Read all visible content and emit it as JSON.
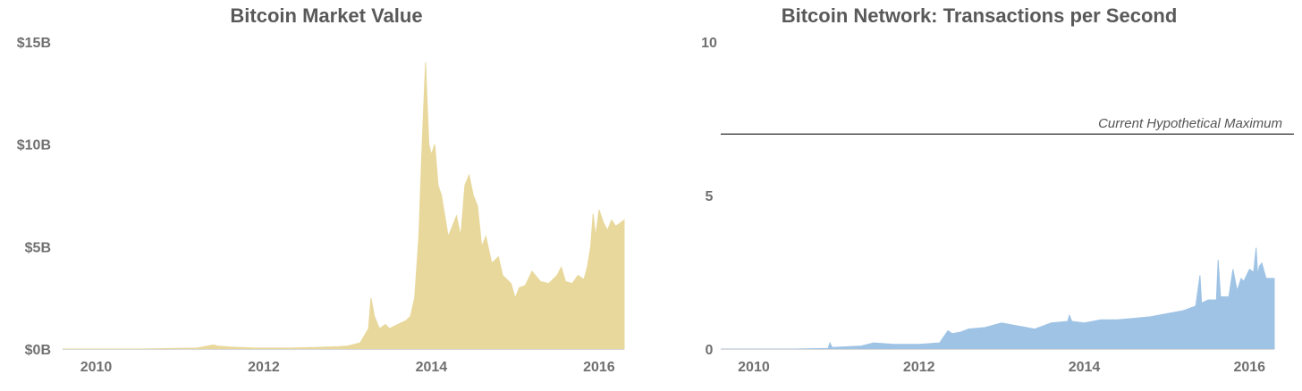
{
  "chart_data": [
    {
      "type": "area",
      "title": "Bitcoin Market Value",
      "xlabel": "",
      "ylabel": "",
      "x_ticks": [
        "2010",
        "2012",
        "2014",
        "2016"
      ],
      "y_ticks": [
        "$0B",
        "$5B",
        "$10B",
        "$15B"
      ],
      "ylim": [
        0,
        15
      ],
      "xlim": [
        2009.6,
        2016.3
      ],
      "color": "#e8d89c",
      "grid": false,
      "legend": "none",
      "series": [
        {
          "x": [
            2009.6,
            2010.5,
            2011.2,
            2011.4,
            2011.45,
            2011.6,
            2011.9,
            2012.3,
            2012.6,
            2012.9,
            2013.0,
            2013.15,
            2013.25,
            2013.28,
            2013.32,
            2013.38,
            2013.45,
            2013.5,
            2013.6,
            2013.7,
            2013.75,
            2013.8,
            2013.85,
            2013.88,
            2013.9,
            2013.93,
            2013.95,
            2013.97,
            2014.0,
            2014.04,
            2014.08,
            2014.12,
            2014.2,
            2014.25,
            2014.3,
            2014.35,
            2014.4,
            2014.45,
            2014.5,
            2014.55,
            2014.6,
            2014.65,
            2014.72,
            2014.8,
            2014.85,
            2014.9,
            2014.95,
            2015.0,
            2015.05,
            2015.12,
            2015.2,
            2015.3,
            2015.4,
            2015.5,
            2015.55,
            2015.6,
            2015.68,
            2015.75,
            2015.82,
            2015.86,
            2015.9,
            2015.93,
            2015.96,
            2016.0,
            2016.05,
            2016.1,
            2016.15,
            2016.2,
            2016.3
          ],
          "y": [
            0.0,
            0.0,
            0.05,
            0.2,
            0.15,
            0.1,
            0.05,
            0.05,
            0.08,
            0.12,
            0.15,
            0.3,
            1.0,
            2.5,
            1.6,
            1.0,
            1.2,
            1.0,
            1.2,
            1.4,
            1.6,
            2.5,
            5.5,
            9.0,
            11.0,
            14.0,
            12.0,
            10.0,
            9.5,
            10.0,
            8.0,
            7.5,
            5.5,
            6.0,
            6.5,
            5.5,
            8.0,
            8.5,
            7.5,
            7.0,
            5.0,
            5.5,
            4.2,
            4.5,
            3.6,
            3.4,
            3.2,
            2.5,
            3.0,
            3.1,
            3.8,
            3.3,
            3.2,
            3.6,
            4.0,
            3.3,
            3.2,
            3.6,
            3.4,
            4.0,
            5.0,
            6.6,
            5.5,
            6.8,
            6.2,
            5.8,
            6.3,
            6.0,
            6.3
          ]
        }
      ]
    },
    {
      "type": "area",
      "title": "Bitcoin Network: Transactions per Second",
      "xlabel": "",
      "ylabel": "",
      "x_ticks": [
        "2010",
        "2012",
        "2014",
        "2016"
      ],
      "y_ticks": [
        "0",
        "5",
        "10"
      ],
      "ylim": [
        0,
        10
      ],
      "xlim": [
        2009.6,
        2016.3
      ],
      "color": "#9fc3e5",
      "grid": false,
      "legend": "none",
      "reference_line": {
        "value": 7,
        "label": "Current Hypothetical Maximum",
        "color": "#555555"
      },
      "series": [
        {
          "x": [
            2009.6,
            2010.5,
            2010.9,
            2010.92,
            2010.95,
            2011.3,
            2011.45,
            2011.7,
            2012.0,
            2012.25,
            2012.3,
            2012.35,
            2012.4,
            2012.5,
            2012.6,
            2012.8,
            2013.0,
            2013.2,
            2013.4,
            2013.5,
            2013.6,
            2013.8,
            2013.82,
            2013.85,
            2014.0,
            2014.2,
            2014.4,
            2014.6,
            2014.8,
            2015.0,
            2015.2,
            2015.35,
            2015.4,
            2015.42,
            2015.5,
            2015.6,
            2015.62,
            2015.65,
            2015.75,
            2015.8,
            2015.85,
            2015.9,
            2015.93,
            2016.0,
            2016.05,
            2016.08,
            2016.1,
            2016.12,
            2016.15,
            2016.2,
            2016.3
          ],
          "y": [
            0.0,
            0.0,
            0.02,
            0.2,
            0.05,
            0.1,
            0.2,
            0.15,
            0.15,
            0.2,
            0.4,
            0.6,
            0.5,
            0.55,
            0.65,
            0.7,
            0.85,
            0.75,
            0.65,
            0.75,
            0.85,
            0.9,
            1.1,
            0.9,
            0.85,
            0.95,
            0.95,
            1.0,
            1.05,
            1.15,
            1.25,
            1.4,
            2.4,
            1.5,
            1.6,
            1.6,
            2.9,
            1.7,
            1.7,
            2.6,
            1.9,
            2.3,
            2.2,
            2.6,
            2.5,
            3.3,
            2.4,
            2.7,
            2.8,
            2.3,
            2.3
          ]
        }
      ]
    }
  ]
}
